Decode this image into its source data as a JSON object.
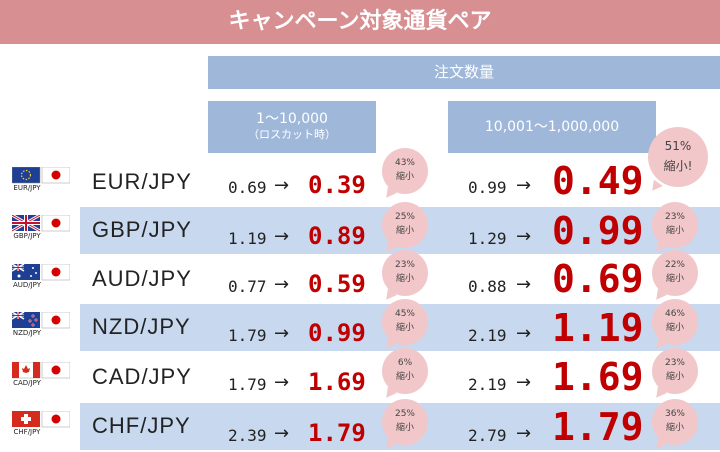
{
  "title": "キャンペーン対象通貨ペア",
  "header": {
    "order_qty": "注文数量",
    "low_tier": "1〜10,000",
    "low_tier_sub": "（ロスカット時）",
    "high_tier": "10,001〜1,000,000"
  },
  "arrow": "→",
  "rows": [
    {
      "flag_code": "EUR/JPY",
      "pair": "EUR/JPY",
      "low_old": "0.69",
      "low_new": "0.39",
      "low_pct": "43%",
      "low_label": "縮小",
      "high_old": "0.99",
      "high_new": "0.49",
      "high_pct": "51%",
      "high_label": "縮小!"
    },
    {
      "flag_code": "GBP/JPY",
      "pair": "GBP/JPY",
      "low_old": "1.19",
      "low_new": "0.89",
      "low_pct": "25%",
      "low_label": "縮小",
      "high_old": "1.29",
      "high_new": "0.99",
      "high_pct": "23%",
      "high_label": "縮小"
    },
    {
      "flag_code": "AUD/JPY",
      "pair": "AUD/JPY",
      "low_old": "0.77",
      "low_new": "0.59",
      "low_pct": "23%",
      "low_label": "縮小",
      "high_old": "0.88",
      "high_new": "0.69",
      "high_pct": "22%",
      "high_label": "縮小"
    },
    {
      "flag_code": "NZD/JPY",
      "pair": "NZD/JPY",
      "low_old": "1.79",
      "low_new": "0.99",
      "low_pct": "45%",
      "low_label": "縮小",
      "high_old": "2.19",
      "high_new": "1.19",
      "high_pct": "46%",
      "high_label": "縮小"
    },
    {
      "flag_code": "CAD/JPY",
      "pair": "CAD/JPY",
      "low_old": "1.79",
      "low_new": "1.69",
      "low_pct": "6%",
      "low_label": "縮小",
      "high_old": "2.19",
      "high_new": "1.69",
      "high_pct": "23%",
      "high_label": "縮小"
    },
    {
      "flag_code": "CHF/JPY",
      "pair": "CHF/JPY",
      "low_old": "2.39",
      "low_new": "1.79",
      "low_pct": "25%",
      "low_label": "縮小",
      "high_old": "2.79",
      "high_new": "1.79",
      "high_pct": "36%",
      "high_label": "縮小"
    }
  ],
  "colors": {
    "banner": "#d88f92",
    "header": "#9fb8da",
    "row_shade": "#c8d9ef",
    "accent_red": "#c00000",
    "bubble": "#f2c7c9"
  }
}
